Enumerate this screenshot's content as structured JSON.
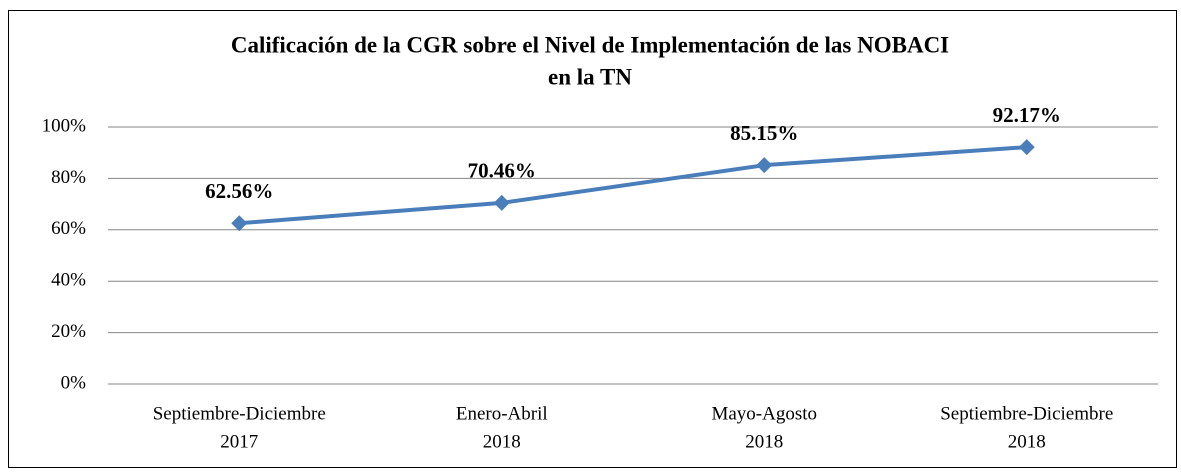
{
  "chart_data": {
    "type": "line",
    "title": [
      "Calificación de la CGR sobre el Nivel de Implementación de las NOBACI",
      "en la TN"
    ],
    "categories": [
      [
        "Septiembre-Diciembre",
        "2017"
      ],
      [
        "Enero-Abril",
        "2018"
      ],
      [
        "Mayo-Agosto",
        "2018"
      ],
      [
        "Septiembre-Diciembre",
        "2018"
      ]
    ],
    "series": [
      {
        "color": "#4a7ebb",
        "values": [
          62.56,
          70.46,
          85.15,
          92.17
        ],
        "value_labels": [
          "62.56%",
          "70.46%",
          "85.15%",
          "92.17%"
        ]
      }
    ],
    "ylim": [
      0,
      100
    ],
    "yticks": [
      {
        "value": 0,
        "label": "0%"
      },
      {
        "value": 20,
        "label": "20%"
      },
      {
        "value": 40,
        "label": "40%"
      },
      {
        "value": 60,
        "label": "60%"
      },
      {
        "value": 80,
        "label": "80%"
      },
      {
        "value": 100,
        "label": "100%"
      }
    ],
    "grid": true
  }
}
